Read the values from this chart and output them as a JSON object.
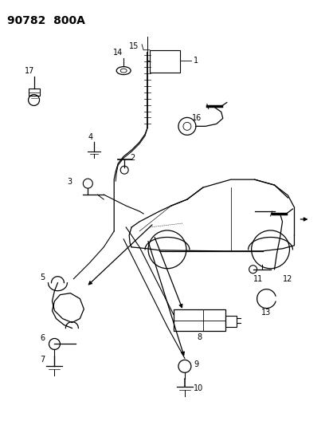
{
  "title": "90782  800A",
  "background_color": "#ffffff",
  "line_color": "#000000",
  "figsize": [
    4.14,
    5.33
  ],
  "dpi": 100
}
